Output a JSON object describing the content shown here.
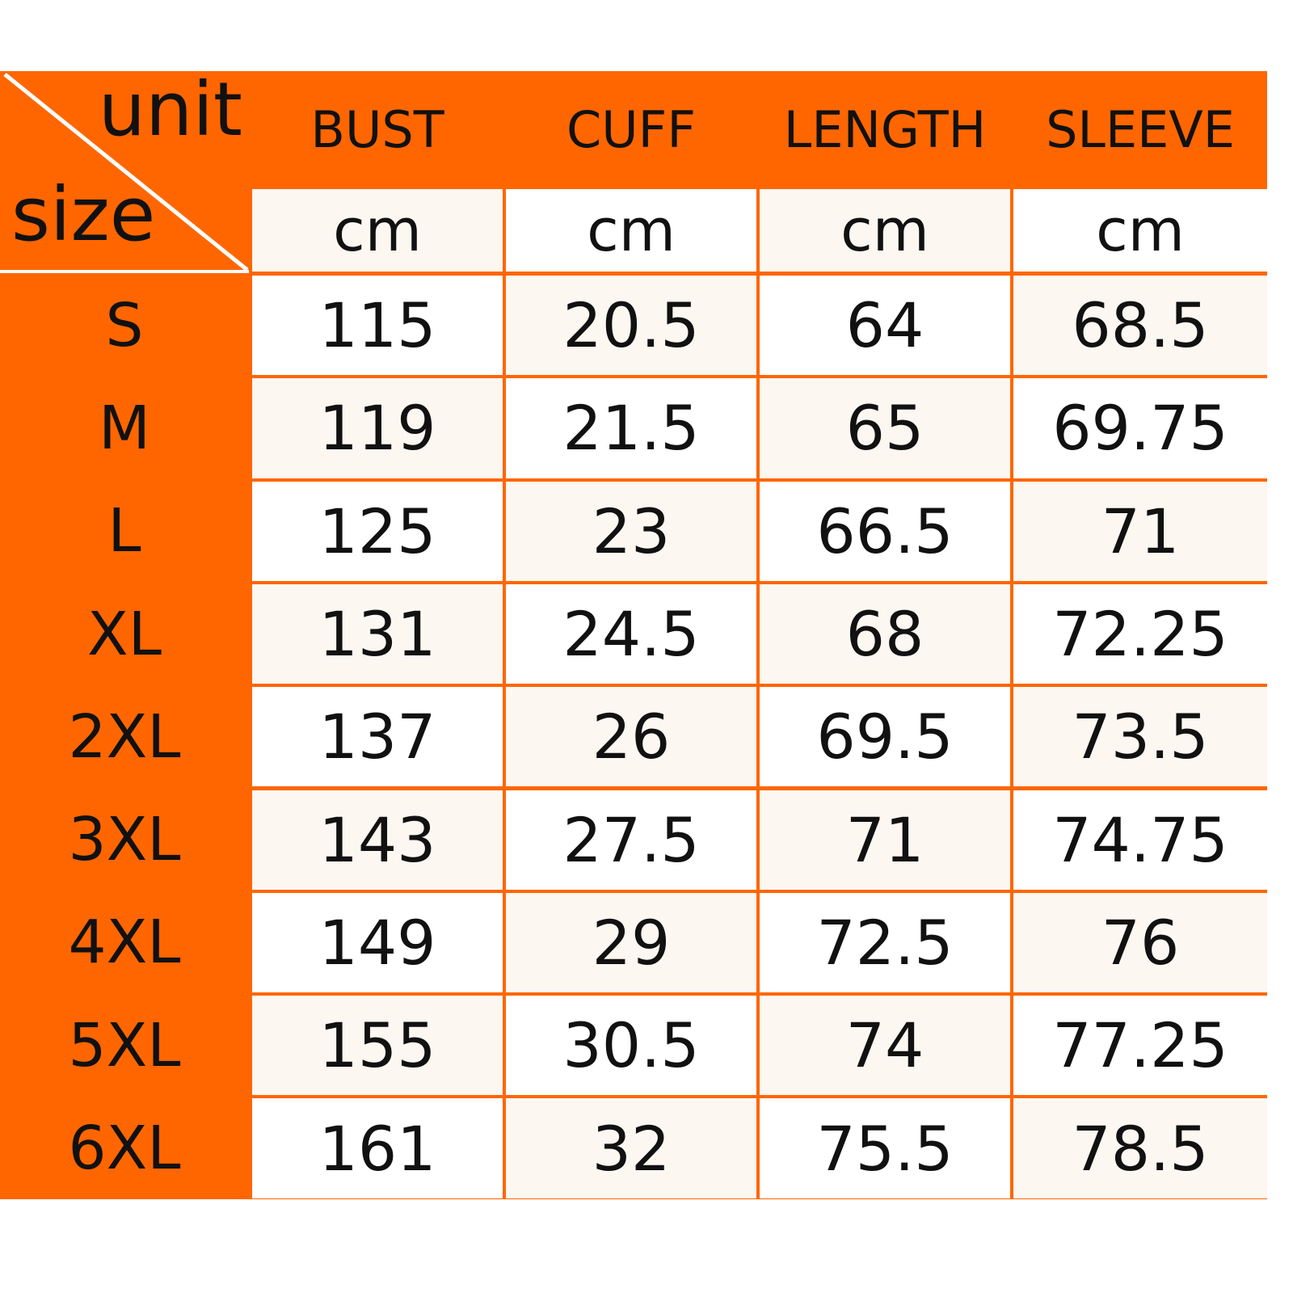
{
  "corner": {
    "unit_label": "unit",
    "size_label": "size"
  },
  "columns": [
    "BUST",
    "CUFF",
    "LENGTH",
    "SLEEVE"
  ],
  "units": [
    "cm",
    "cm",
    "cm",
    "cm"
  ],
  "rows": [
    {
      "size": "S",
      "values": [
        "115",
        "20.5",
        "64",
        "68.5"
      ]
    },
    {
      "size": "M",
      "values": [
        "119",
        "21.5",
        "65",
        "69.75"
      ]
    },
    {
      "size": "L",
      "values": [
        "125",
        "23",
        "66.5",
        "71"
      ]
    },
    {
      "size": "XL",
      "values": [
        "131",
        "24.5",
        "68",
        "72.25"
      ]
    },
    {
      "size": "2XL",
      "values": [
        "137",
        "26",
        "69.5",
        "73.5"
      ]
    },
    {
      "size": "3XL",
      "values": [
        "143",
        "27.5",
        "71",
        "74.75"
      ]
    },
    {
      "size": "4XL",
      "values": [
        "149",
        "29",
        "72.5",
        "76"
      ]
    },
    {
      "size": "5XL",
      "values": [
        "155",
        "30.5",
        "74",
        "77.25"
      ]
    },
    {
      "size": "6XL",
      "values": [
        "161",
        "32",
        "75.5",
        "78.5"
      ]
    }
  ],
  "colors": {
    "accent": "#ff6600",
    "cream": "#fdf7f2",
    "white": "#ffffff"
  }
}
